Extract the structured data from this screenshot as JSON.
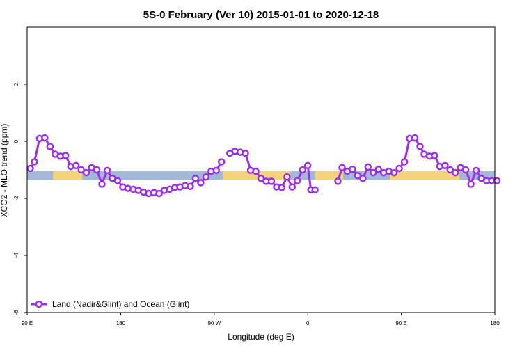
{
  "chart_data": {
    "type": "line",
    "title": "5S-0 February (Ver 10)   2015-01-01 to 2020-12-18",
    "xlabel": "Longitude (deg E)",
    "ylabel": "XCO2 - MLO trend (ppm)",
    "xlim": [
      90,
      540
    ],
    "ylim": [
      -6,
      4
    ],
    "x_ticks": [
      {
        "value": 90,
        "label": "90 E"
      },
      {
        "value": 180,
        "label": "180"
      },
      {
        "value": 270,
        "label": "90 W"
      },
      {
        "value": 360,
        "label": "0"
      },
      {
        "value": 450,
        "label": "90 E"
      },
      {
        "value": 540,
        "label": "180"
      }
    ],
    "y_ticks": [
      {
        "value": -6,
        "label": "-6"
      },
      {
        "value": -4,
        "label": "-4"
      },
      {
        "value": -2,
        "label": "-2"
      },
      {
        "value": 0,
        "label": "0"
      },
      {
        "value": 2,
        "label": "2"
      }
    ],
    "grid": false,
    "legend_position": "bottom-left",
    "colors": {
      "series": "#9b30e6",
      "ocean_band": "#a3b8d8",
      "land_band": "#f5d37a"
    },
    "surface_band": {
      "y_range": [
        -1.35,
        -1.05
      ],
      "land_segments": [
        [
          115,
          143
        ],
        [
          278,
          343
        ],
        [
          367,
          394
        ],
        [
          439,
          506
        ]
      ]
    },
    "series": [
      {
        "name": "Land (Nadir&Glint) and Ocean (Glint)",
        "segments": [
          {
            "x": [
              93,
              97,
              102,
              107,
              112,
              117,
              122,
              127,
              132,
              137,
              142,
              147,
              152,
              157,
              162,
              167,
              172,
              177,
              182,
              187,
              192,
              197,
              202,
              207,
              212,
              217,
              222,
              227,
              232,
              237,
              242,
              247,
              252,
              257,
              262,
              267,
              272,
              277
            ],
            "y": [
              -0.95,
              -0.72,
              0.1,
              0.12,
              -0.18,
              -0.45,
              -0.52,
              -0.5,
              -0.88,
              -0.85,
              -1.0,
              -1.1,
              -0.92,
              -1.0,
              -1.5,
              -1.02,
              -1.3,
              -1.38,
              -1.6,
              -1.65,
              -1.68,
              -1.72,
              -1.78,
              -1.83,
              -1.8,
              -1.83,
              -1.72,
              -1.68,
              -1.62,
              -1.6,
              -1.55,
              -1.58,
              -1.3,
              -1.45,
              -1.25,
              -1.05,
              -1.02,
              -0.72
            ]
          },
          {
            "x": [
              285,
              290,
              295,
              300,
              305,
              310,
              315,
              320,
              325,
              330,
              335,
              340,
              345,
              350,
              355,
              360,
              363,
              367
            ],
            "y": [
              -0.42,
              -0.35,
              -0.38,
              -0.42,
              -1.02,
              -1.05,
              -1.3,
              -1.4,
              -1.4,
              -1.6,
              -1.62,
              -1.25,
              -1.6,
              -1.38,
              -1.0,
              -0.85,
              -1.7,
              -1.7
            ]
          },
          {
            "x": [
              389,
              393,
              398,
              403,
              408,
              413,
              418,
              423,
              428,
              433,
              438,
              443,
              448,
              453,
              458,
              463,
              468,
              472,
              477,
              482,
              487,
              492,
              497,
              502,
              507,
              512,
              517,
              522,
              527,
              532,
              537,
              542
            ],
            "y": [
              -1.4,
              -0.92,
              -1.05,
              -0.98,
              -1.2,
              -1.3,
              -0.9,
              -1.1,
              -0.98,
              -1.1,
              -1.05,
              -1.1,
              -0.95,
              -0.72,
              0.1,
              0.12,
              -0.18,
              -0.45,
              -0.52,
              -0.5,
              -0.88,
              -0.85,
              -1.0,
              -1.1,
              -0.92,
              -1.0,
              -1.5,
              -1.02,
              -1.3,
              -1.38,
              -1.38,
              -1.38
            ]
          }
        ]
      }
    ]
  }
}
